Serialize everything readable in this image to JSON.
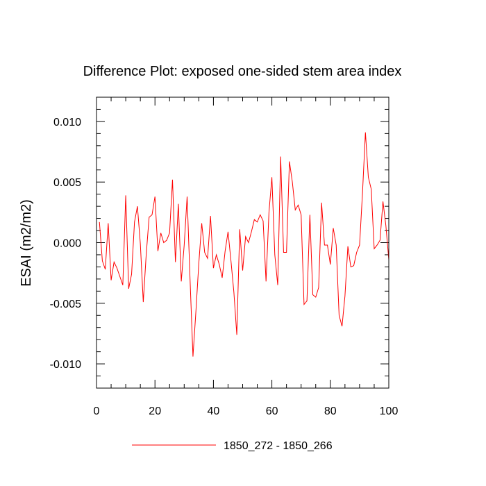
{
  "chart_data": {
    "type": "line",
    "title": "Difference Plot: exposed one-sided stem area index",
    "xlabel": "",
    "ylabel": "ESAI  (m2/m2)",
    "xlim": [
      0,
      100
    ],
    "ylim": [
      -0.012,
      0.012
    ],
    "x_ticks": [
      0,
      20,
      40,
      60,
      80,
      100
    ],
    "x_tick_labels": [
      "0",
      "20",
      "40",
      "60",
      "80",
      "100"
    ],
    "y_ticks": [
      -0.01,
      -0.005,
      0.0,
      0.005,
      0.01
    ],
    "y_tick_labels": [
      "-0.010",
      "-0.005",
      "0.000",
      "0.005",
      "0.010"
    ],
    "series": [
      {
        "name": "1850_272 - 1850_266",
        "color": "#ff0000",
        "x": [
          1,
          2,
          3,
          4,
          5,
          6,
          7,
          8,
          9,
          10,
          11,
          12,
          13,
          14,
          15,
          16,
          17,
          18,
          19,
          20,
          21,
          22,
          23,
          24,
          25,
          26,
          27,
          28,
          29,
          30,
          31,
          32,
          33,
          34,
          35,
          36,
          37,
          38,
          39,
          40,
          41,
          42,
          43,
          44,
          45,
          46,
          47,
          48,
          49,
          50,
          51,
          52,
          53,
          54,
          55,
          56,
          57,
          58,
          59,
          60,
          61,
          62,
          63,
          64,
          65,
          66,
          67,
          68,
          69,
          70,
          71,
          72,
          73,
          74,
          75,
          76,
          77,
          78,
          79,
          80,
          81,
          82,
          83,
          84,
          85,
          86,
          87,
          88,
          89,
          90,
          91,
          92,
          93,
          94,
          95,
          96,
          97,
          98,
          99,
          100
        ],
        "values": [
          0.0017,
          -0.0015,
          -0.0022,
          0.0016,
          -0.0031,
          -0.0016,
          -0.0021,
          -0.0028,
          -0.0035,
          0.0039,
          -0.0038,
          -0.0026,
          0.0017,
          0.003,
          -0.0001,
          -0.0049,
          -0.001,
          0.0021,
          0.0023,
          0.0038,
          -0.0007,
          0.0008,
          0.0,
          0.0002,
          0.0008,
          0.0052,
          -0.0016,
          0.0032,
          -0.0032,
          -0.0002,
          0.0038,
          -0.003,
          -0.0094,
          -0.0057,
          -0.0017,
          0.0016,
          -0.0008,
          -0.0013,
          0.0022,
          -0.0021,
          -0.001,
          -0.0018,
          -0.0029,
          -0.0007,
          0.0009,
          -0.0015,
          -0.0041,
          -0.0076,
          0.0011,
          -0.0023,
          0.0005,
          0.0,
          0.0009,
          0.0019,
          0.0017,
          0.0023,
          0.0018,
          -0.0032,
          0.0025,
          0.0054,
          -0.001,
          -0.0035,
          0.0071,
          -0.0008,
          -0.0008,
          0.0067,
          0.005,
          0.0027,
          0.0031,
          0.0023,
          -0.0051,
          -0.0048,
          0.0023,
          -0.0043,
          -0.0045,
          -0.0037,
          0.0033,
          -0.0002,
          -0.0002,
          -0.0018,
          0.0012,
          -0.0002,
          -0.006,
          -0.0069,
          -0.0044,
          -0.0003,
          -0.002,
          -0.0019,
          -0.0008,
          -0.0002,
          0.0041,
          0.0091,
          0.0054,
          0.0044,
          -0.0005,
          -0.0002,
          0.0002,
          0.0034,
          0.0014,
          -0.0014
        ]
      }
    ],
    "legend": {
      "position": "bottom-center",
      "entries": [
        "1850_272 - 1850_266"
      ]
    }
  }
}
